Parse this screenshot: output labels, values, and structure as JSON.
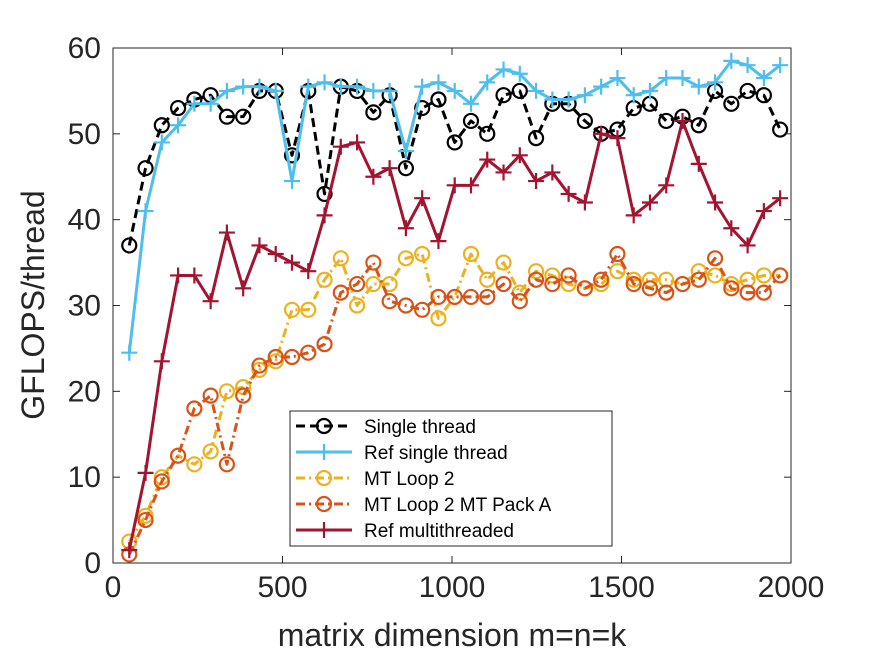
{
  "chart_data": {
    "type": "line",
    "title": "",
    "xlabel": "matrix dimension m=n=k",
    "ylabel": "GFLOPS/thread",
    "xlim": [
      0,
      2000
    ],
    "ylim": [
      0,
      60
    ],
    "xticks": [
      "0",
      "500",
      "1000",
      "1500",
      "2000"
    ],
    "yticks": [
      "0",
      "10",
      "20",
      "30",
      "40",
      "50",
      "60"
    ],
    "grid": false,
    "legend_position": "lower-center",
    "x": [
      48,
      96,
      144,
      192,
      240,
      288,
      336,
      384,
      432,
      480,
      528,
      576,
      624,
      672,
      720,
      768,
      816,
      864,
      912,
      960,
      1008,
      1056,
      1104,
      1152,
      1200,
      1248,
      1296,
      1344,
      1392,
      1440,
      1488,
      1536,
      1584,
      1632,
      1680,
      1728,
      1776,
      1824,
      1872,
      1920,
      1968
    ],
    "series": [
      {
        "name": "Single thread",
        "color": "#000000",
        "line_style": "dashed",
        "marker": "circle",
        "values": [
          37,
          46,
          51,
          53,
          54,
          54.5,
          52,
          52,
          55,
          55,
          47.5,
          55,
          43,
          55.5,
          55,
          52.5,
          54.5,
          46,
          53,
          54,
          49,
          51.5,
          50,
          54.5,
          55,
          49.5,
          53.5,
          53.5,
          51.5,
          50,
          50.5,
          53,
          53.5,
          51.5,
          52,
          51,
          55,
          53.5,
          55,
          54.5,
          50.5
        ]
      },
      {
        "name": "Ref single thread",
        "color": "#4DBEEE",
        "line_style": "solid",
        "marker": "plus",
        "values": [
          24.5,
          41,
          49,
          51,
          53.5,
          53.5,
          55,
          55.5,
          55.5,
          55,
          44.5,
          55.5,
          56,
          55.5,
          55.5,
          55,
          55,
          48,
          55.5,
          56,
          55,
          53.5,
          56,
          57.5,
          57,
          55,
          54,
          54,
          54.5,
          55.5,
          56.5,
          54.5,
          55,
          56.5,
          56.5,
          55.5,
          56,
          58.5,
          58,
          56.5,
          58
        ]
      },
      {
        "name": "MT Loop 2",
        "color": "#EDB120",
        "line_style": "dashdot",
        "marker": "circle",
        "values": [
          2.5,
          5.5,
          10,
          12.5,
          11.5,
          13,
          20,
          20.5,
          22.5,
          23.5,
          29.5,
          29.5,
          33,
          35.5,
          30,
          32.5,
          32.5,
          35.5,
          36,
          28.5,
          31,
          36,
          33,
          35,
          31.5,
          34,
          33.5,
          32.5,
          32,
          32.5,
          34,
          33,
          33,
          33,
          32.5,
          34,
          33.5,
          32.5,
          33,
          33.5,
          33.5
        ]
      },
      {
        "name": "MT Loop 2 MT Pack A",
        "color": "#D95319",
        "line_style": "dashdot",
        "marker": "circle",
        "values": [
          1,
          5,
          9.5,
          12.5,
          18,
          19.5,
          11.5,
          19.5,
          23,
          24,
          24,
          24.5,
          25.5,
          31.5,
          32.5,
          35,
          30.5,
          30,
          29.5,
          31,
          31,
          31,
          31,
          32.5,
          30.5,
          33,
          32.5,
          33.5,
          32,
          33,
          36,
          32.5,
          32,
          31.5,
          32.5,
          33,
          35.5,
          32,
          31.5,
          31.5,
          33.5
        ]
      },
      {
        "name": "Ref multithreaded",
        "color": "#A2142F",
        "line_style": "solid",
        "marker": "plus",
        "values": [
          1.5,
          10.5,
          23.5,
          33.5,
          33.5,
          30.5,
          38.5,
          32,
          37,
          36,
          35,
          34,
          40.5,
          48.5,
          49,
          45,
          46,
          39,
          42.5,
          37.5,
          44,
          44,
          47,
          45.5,
          47.5,
          44.5,
          45.5,
          43,
          42,
          50,
          49.5,
          40.5,
          42,
          44,
          51.5,
          46.5,
          42,
          39,
          37,
          41,
          42.5
        ]
      }
    ]
  }
}
